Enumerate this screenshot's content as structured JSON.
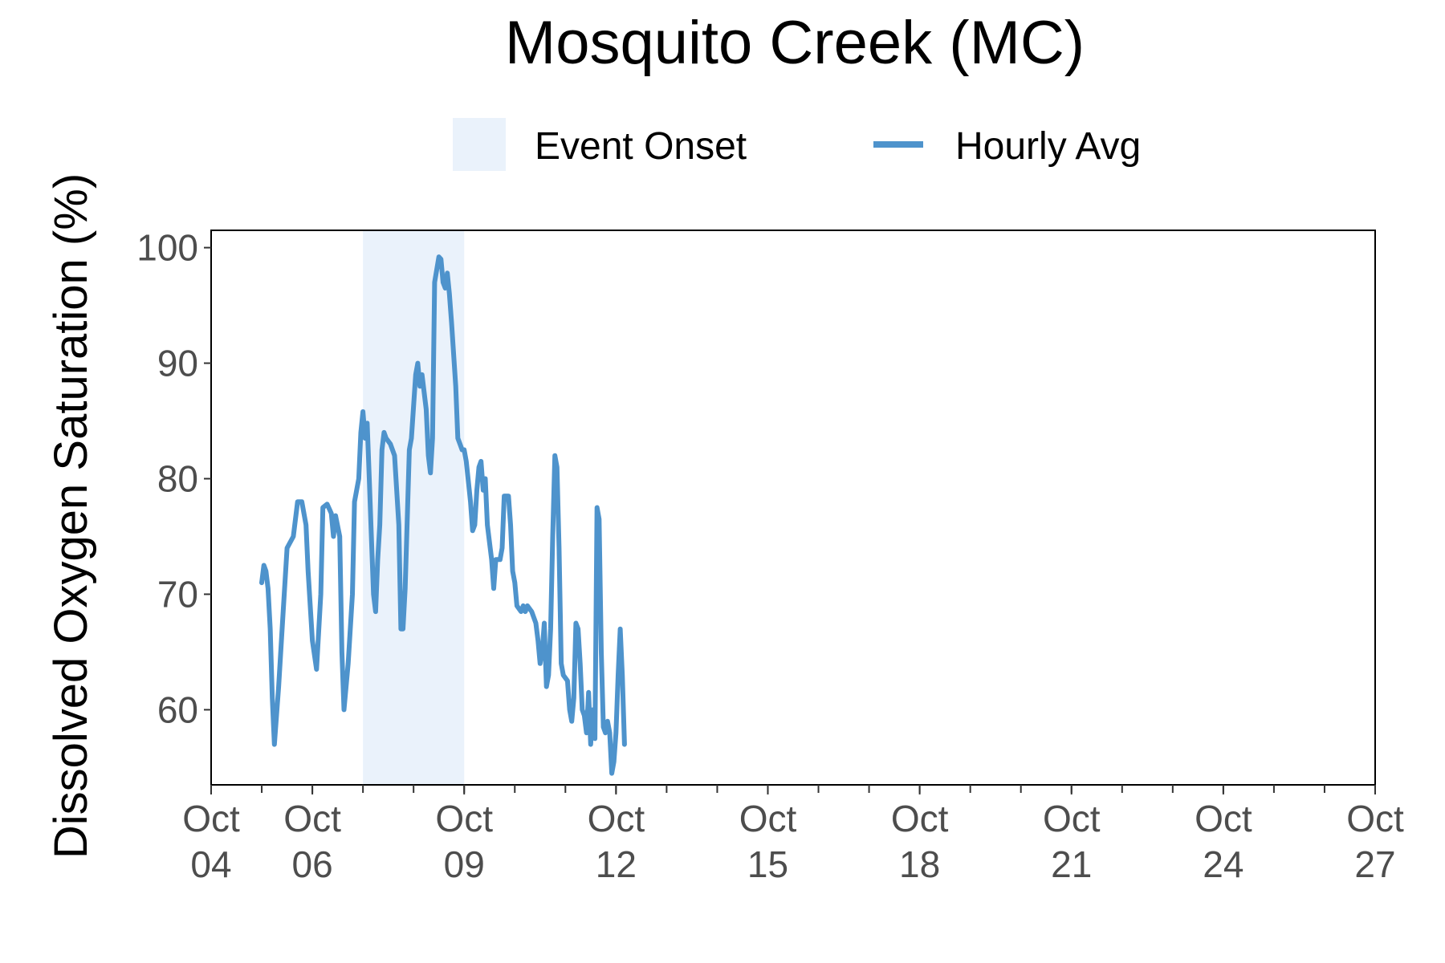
{
  "chart_data": {
    "type": "line",
    "title": "Mosquito Creek (MC)",
    "xlabel": "",
    "ylabel": "Dissolved Oxygen Saturation (%)",
    "xlim": [
      "2023-10-04",
      "2023-10-27"
    ],
    "ylim": [
      53.5,
      101.5
    ],
    "yticks": [
      60,
      70,
      80,
      90,
      100
    ],
    "xticks": [
      {
        "date": "2023-10-04",
        "label": "Oct 04"
      },
      {
        "date": "2023-10-06",
        "label": "Oct 06"
      },
      {
        "date": "2023-10-09",
        "label": "Oct 09"
      },
      {
        "date": "2023-10-12",
        "label": "Oct 12"
      },
      {
        "date": "2023-10-15",
        "label": "Oct 15"
      },
      {
        "date": "2023-10-18",
        "label": "Oct 18"
      },
      {
        "date": "2023-10-21",
        "label": "Oct 21"
      },
      {
        "date": "2023-10-24",
        "label": "Oct 24"
      },
      {
        "date": "2023-10-27",
        "label": "Oct 27"
      }
    ],
    "grid": false,
    "legend_position": "top",
    "legend": [
      {
        "name": "Event Onset",
        "kind": "rect",
        "color": "#eaf2fb"
      },
      {
        "name": "Hourly Avg",
        "kind": "line",
        "color": "#4e93cc"
      }
    ],
    "shaded_region": {
      "name": "Event Onset",
      "x_start": "2023-10-07T00:00",
      "x_end": "2023-10-09T00:00",
      "color": "#eaf2fb"
    },
    "series": [
      {
        "name": "Hourly Avg",
        "color": "#4e93cc",
        "points": [
          [
            "2023-10-05T00:00",
            71.0
          ],
          [
            "2023-10-05T01:00",
            72.5
          ],
          [
            "2023-10-05T02:00",
            72.0
          ],
          [
            "2023-10-05T03:00",
            70.5
          ],
          [
            "2023-10-05T04:00",
            67.0
          ],
          [
            "2023-10-05T05:00",
            61.0
          ],
          [
            "2023-10-05T06:00",
            57.0
          ],
          [
            "2023-10-05T08:00",
            62.0
          ],
          [
            "2023-10-05T10:00",
            68.0
          ],
          [
            "2023-10-05T12:00",
            74.0
          ],
          [
            "2023-10-05T15:00",
            75.0
          ],
          [
            "2023-10-05T17:00",
            78.0
          ],
          [
            "2023-10-05T19:00",
            78.0
          ],
          [
            "2023-10-05T21:00",
            76.0
          ],
          [
            "2023-10-05T22:00",
            72.0
          ],
          [
            "2023-10-06T00:00",
            66.0
          ],
          [
            "2023-10-06T02:00",
            63.5
          ],
          [
            "2023-10-06T04:00",
            70.0
          ],
          [
            "2023-10-06T05:00",
            77.5
          ],
          [
            "2023-10-06T07:00",
            77.8
          ],
          [
            "2023-10-06T09:00",
            77.0
          ],
          [
            "2023-10-06T10:00",
            75.0
          ],
          [
            "2023-10-06T11:00",
            76.8
          ],
          [
            "2023-10-06T13:00",
            75.0
          ],
          [
            "2023-10-06T14:00",
            65.0
          ],
          [
            "2023-10-06T15:00",
            60.0
          ],
          [
            "2023-10-06T17:00",
            64.0
          ],
          [
            "2023-10-06T19:00",
            70.0
          ],
          [
            "2023-10-06T20:00",
            78.0
          ],
          [
            "2023-10-06T22:00",
            80.0
          ],
          [
            "2023-10-06T23:00",
            84.0
          ],
          [
            "2023-10-07T00:00",
            85.8
          ],
          [
            "2023-10-07T01:00",
            83.5
          ],
          [
            "2023-10-07T02:00",
            84.8
          ],
          [
            "2023-10-07T03:00",
            80.0
          ],
          [
            "2023-10-07T04:00",
            75.0
          ],
          [
            "2023-10-07T05:00",
            70.0
          ],
          [
            "2023-10-07T06:00",
            68.5
          ],
          [
            "2023-10-07T07:00",
            73.0
          ],
          [
            "2023-10-07T08:00",
            76.0
          ],
          [
            "2023-10-07T09:00",
            82.5
          ],
          [
            "2023-10-07T10:00",
            84.0
          ],
          [
            "2023-10-07T11:00",
            83.5
          ],
          [
            "2023-10-07T13:00",
            83.0
          ],
          [
            "2023-10-07T15:00",
            82.0
          ],
          [
            "2023-10-07T17:00",
            76.0
          ],
          [
            "2023-10-07T18:00",
            67.0
          ],
          [
            "2023-10-07T19:00",
            67.0
          ],
          [
            "2023-10-07T20:00",
            70.5
          ],
          [
            "2023-10-07T22:00",
            82.5
          ],
          [
            "2023-10-07T23:00",
            83.5
          ],
          [
            "2023-10-08T01:00",
            89.0
          ],
          [
            "2023-10-08T02:00",
            90.0
          ],
          [
            "2023-10-08T03:00",
            88.0
          ],
          [
            "2023-10-08T04:00",
            89.0
          ],
          [
            "2023-10-08T06:00",
            86.0
          ],
          [
            "2023-10-08T07:00",
            82.0
          ],
          [
            "2023-10-08T08:00",
            80.5
          ],
          [
            "2023-10-08T09:00",
            83.5
          ],
          [
            "2023-10-08T10:00",
            97.0
          ],
          [
            "2023-10-08T12:00",
            99.2
          ],
          [
            "2023-10-08T13:00",
            99.0
          ],
          [
            "2023-10-08T14:00",
            97.0
          ],
          [
            "2023-10-08T15:00",
            96.5
          ],
          [
            "2023-10-08T16:00",
            97.8
          ],
          [
            "2023-10-08T17:00",
            96.0
          ],
          [
            "2023-10-08T18:00",
            93.5
          ],
          [
            "2023-10-08T20:00",
            88.0
          ],
          [
            "2023-10-08T21:00",
            83.5
          ],
          [
            "2023-10-08T22:00",
            83.0
          ],
          [
            "2023-10-08T23:00",
            82.5
          ],
          [
            "2023-10-09T00:00",
            82.5
          ],
          [
            "2023-10-09T01:00",
            81.5
          ],
          [
            "2023-10-09T03:00",
            78.0
          ],
          [
            "2023-10-09T04:00",
            75.5
          ],
          [
            "2023-10-09T05:00",
            76.0
          ],
          [
            "2023-10-09T06:00",
            79.0
          ],
          [
            "2023-10-09T07:00",
            81.0
          ],
          [
            "2023-10-09T08:00",
            81.5
          ],
          [
            "2023-10-09T09:00",
            79.0
          ],
          [
            "2023-10-09T10:00",
            80.0
          ],
          [
            "2023-10-09T11:00",
            76.0
          ],
          [
            "2023-10-09T13:00",
            73.0
          ],
          [
            "2023-10-09T14:00",
            70.5
          ],
          [
            "2023-10-09T15:00",
            73.0
          ],
          [
            "2023-10-09T17:00",
            73.0
          ],
          [
            "2023-10-09T18:00",
            74.0
          ],
          [
            "2023-10-09T19:00",
            78.5
          ],
          [
            "2023-10-09T21:00",
            78.5
          ],
          [
            "2023-10-09T22:00",
            76.0
          ],
          [
            "2023-10-09T23:00",
            72.0
          ],
          [
            "2023-10-10T00:00",
            71.0
          ],
          [
            "2023-10-10T01:00",
            69.0
          ],
          [
            "2023-10-10T03:00",
            68.5
          ],
          [
            "2023-10-10T04:00",
            69.0
          ],
          [
            "2023-10-10T05:00",
            68.5
          ],
          [
            "2023-10-10T06:00",
            69.0
          ],
          [
            "2023-10-10T08:00",
            68.5
          ],
          [
            "2023-10-10T10:00",
            67.5
          ],
          [
            "2023-10-10T11:00",
            66.0
          ],
          [
            "2023-10-10T12:00",
            64.0
          ],
          [
            "2023-10-10T13:00",
            65.0
          ],
          [
            "2023-10-10T14:00",
            67.5
          ],
          [
            "2023-10-10T15:00",
            62.0
          ],
          [
            "2023-10-10T16:00",
            63.0
          ],
          [
            "2023-10-10T17:00",
            67.0
          ],
          [
            "2023-10-10T18:00",
            75.0
          ],
          [
            "2023-10-10T19:00",
            82.0
          ],
          [
            "2023-10-10T20:00",
            81.0
          ],
          [
            "2023-10-10T21:00",
            74.0
          ],
          [
            "2023-10-10T22:00",
            64.0
          ],
          [
            "2023-10-10T23:00",
            63.0
          ],
          [
            "2023-10-11T01:00",
            62.5
          ],
          [
            "2023-10-11T02:00",
            60.0
          ],
          [
            "2023-10-11T03:00",
            59.0
          ],
          [
            "2023-10-11T04:00",
            61.0
          ],
          [
            "2023-10-11T05:00",
            67.5
          ],
          [
            "2023-10-11T06:00",
            67.0
          ],
          [
            "2023-10-11T07:00",
            64.0
          ],
          [
            "2023-10-11T08:00",
            60.0
          ],
          [
            "2023-10-11T09:00",
            59.5
          ],
          [
            "2023-10-11T10:00",
            58.0
          ],
          [
            "2023-10-11T11:00",
            61.5
          ],
          [
            "2023-10-11T12:00",
            57.0
          ],
          [
            "2023-10-11T13:00",
            60.0
          ],
          [
            "2023-10-11T14:00",
            57.5
          ],
          [
            "2023-10-11T15:00",
            77.5
          ],
          [
            "2023-10-11T16:00",
            76.5
          ],
          [
            "2023-10-11T17:00",
            65.0
          ],
          [
            "2023-10-11T18:00",
            58.5
          ],
          [
            "2023-10-11T19:00",
            58.0
          ],
          [
            "2023-10-11T20:00",
            59.0
          ],
          [
            "2023-10-11T21:00",
            58.0
          ],
          [
            "2023-10-11T22:00",
            54.5
          ],
          [
            "2023-10-11T23:00",
            55.5
          ],
          [
            "2023-10-12T00:00",
            58.0
          ],
          [
            "2023-10-12T01:00",
            63.0
          ],
          [
            "2023-10-12T02:00",
            67.0
          ],
          [
            "2023-10-12T03:00",
            63.0
          ],
          [
            "2023-10-12T04:00",
            57.0
          ]
        ]
      }
    ]
  }
}
